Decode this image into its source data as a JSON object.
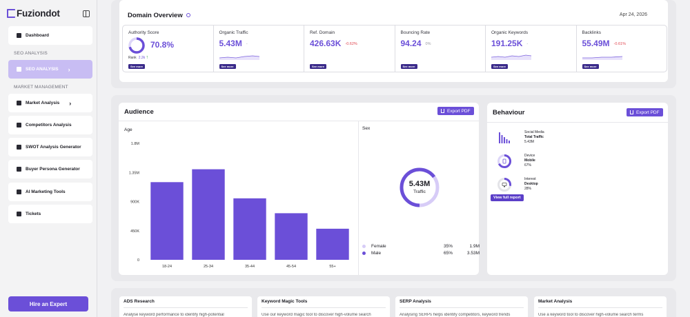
{
  "brand": {
    "name": "Fuziondot"
  },
  "sidebar": {
    "dashboard": "Dashboard",
    "seo_section": "SEO ANALYSIS",
    "seo_analysis": "SEO ANALYSIS",
    "market_section": "MARKET MANAGEMENT",
    "items": [
      "Market Analysis",
      "Competitors Analysis",
      "SWOT Analysis Generator",
      "Buyer Persona Generator",
      "AI Marketing Tools",
      "Tickets"
    ],
    "hire": "Hire an Expert"
  },
  "overview": {
    "title": "Domain Overview",
    "date": "Apr 24, 2026",
    "see_more": "See more",
    "authority": {
      "label": "Authority Score",
      "value": "70.8%",
      "fraction": 0.708,
      "rank_label": "Rank",
      "rank_value": "2.2k"
    },
    "metrics": [
      {
        "label": "Organic Traffic",
        "value": "5.43M",
        "delta": "-",
        "delta_color": "#9a9aa2"
      },
      {
        "label": "Ref. Domain",
        "value": "426.63K",
        "delta": "-0.62%",
        "delta_color": "#e0454f"
      },
      {
        "label": "Bouncing Rate",
        "value": "94.24",
        "delta": "0%",
        "delta_color": "#9a9aa2"
      },
      {
        "label": "Organic Keywords",
        "value": "191.25K",
        "delta": "-",
        "delta_color": "#9a9aa2"
      },
      {
        "label": "Backlinks",
        "value": "55.49M",
        "delta": "-0.61%",
        "delta_color": "#e0454f"
      }
    ]
  },
  "audience": {
    "title": "Audience",
    "export": "Export PDF",
    "age_label": "Age",
    "sex_label": "Sex",
    "ring_value": "5.43M",
    "ring_label": "Traffic",
    "legend": [
      {
        "name": "Female",
        "pct": "35%",
        "val": "1.9M",
        "color": "#d7ccf7"
      },
      {
        "name": "Male",
        "pct": "65%",
        "val": "3.53M",
        "color": "#6b4fd8"
      }
    ]
  },
  "chart_data": {
    "type": "bar",
    "categories": [
      "18-24",
      "25-34",
      "35-44",
      "45-54",
      "55+"
    ],
    "values": [
      1.2,
      1.4,
      0.95,
      0.72,
      0.48
    ],
    "yticks": [
      "1.8M",
      "1.35M",
      "900K",
      "450K",
      "0"
    ],
    "ylim": [
      0,
      1.8
    ],
    "color": "#6b4fd8"
  },
  "behaviour": {
    "title": "Behaviour",
    "export": "Export PDF",
    "items": [
      {
        "l1": "Social Media",
        "l2": "Total Traffic",
        "l3": "5.43M"
      },
      {
        "l1": "Device",
        "l2": "Mobile",
        "l3": "67%"
      },
      {
        "l1": "Interest",
        "l2": "Desktop",
        "l3": "28%"
      }
    ],
    "view": "View full report"
  },
  "tools": [
    {
      "title": "ADS Research",
      "desc": "Analyse keyword performance to identify high-potential"
    },
    {
      "title": "Keyword Magic Tools",
      "desc": "Use our keyword magic tool to discover high-volume search"
    },
    {
      "title": "SERP Analysis",
      "desc": "Analysing SERPs helps identify competitors, keyword trends"
    },
    {
      "title": "Market Analysis",
      "desc": "Use a keyword tool to discover high-volume search terms"
    }
  ]
}
